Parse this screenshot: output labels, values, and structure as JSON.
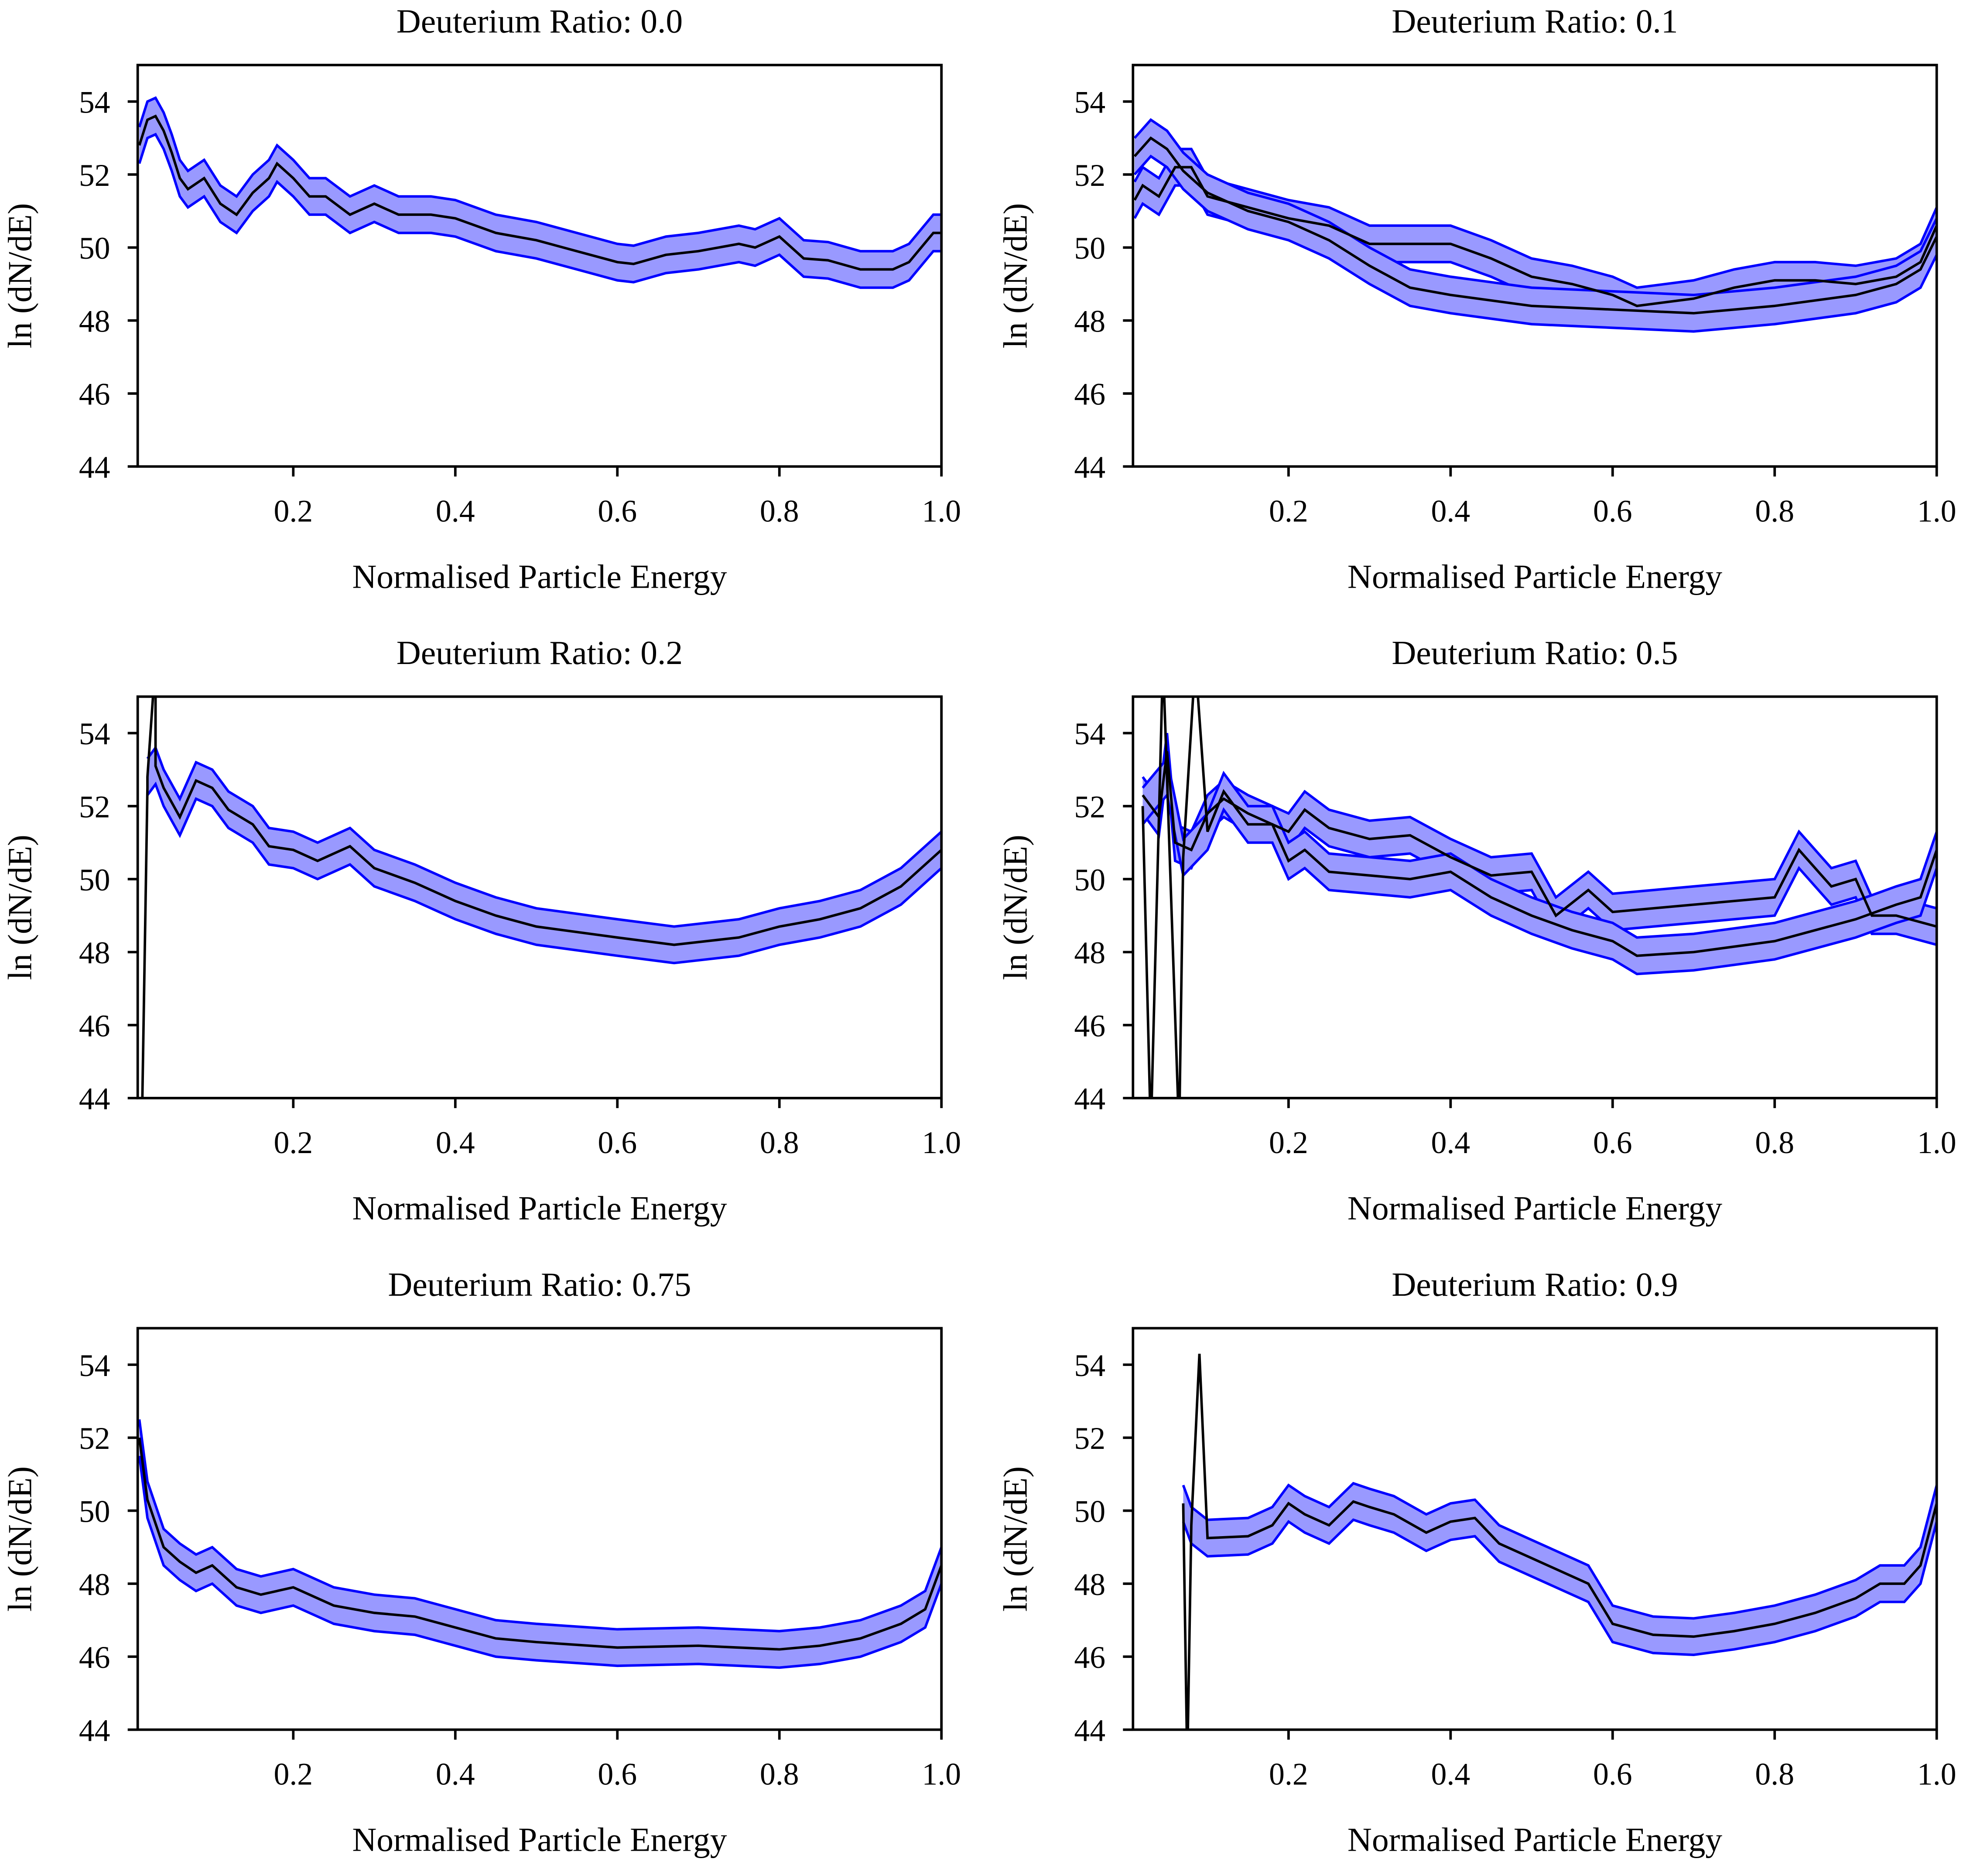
{
  "chart_data": [
    {
      "type": "line",
      "title": "Deuterium Ratio: 0.0",
      "xlabel": "Normalised Particle Energy",
      "ylabel": "ln (dN/dE)",
      "xlim": [
        0.008,
        1.0
      ],
      "ylim": [
        44,
        55
      ],
      "xticks": [
        "0.2",
        "0.4",
        "0.6",
        "0.8",
        "1.0"
      ],
      "yticks": [
        "44",
        "46",
        "48",
        "50",
        "52",
        "54"
      ],
      "line_color": "#000000",
      "band_color": "#0000ff",
      "band_fill": "#9999ff",
      "series": [
        {
          "spread": 0.5,
          "x": [
            0.01,
            0.02,
            0.03,
            0.04,
            0.05,
            0.06,
            0.07,
            0.09,
            0.11,
            0.13,
            0.15,
            0.17,
            0.18,
            0.2,
            0.22,
            0.24,
            0.27,
            0.3,
            0.33,
            0.37,
            0.4,
            0.45,
            0.5,
            0.55,
            0.6,
            0.62,
            0.66,
            0.7,
            0.75,
            0.77,
            0.8,
            0.83,
            0.86,
            0.9,
            0.94,
            0.96,
            0.99,
            1.0
          ],
          "y": [
            52.8,
            53.5,
            53.6,
            53.2,
            52.6,
            51.9,
            51.6,
            51.9,
            51.2,
            50.9,
            51.5,
            51.9,
            52.3,
            51.9,
            51.4,
            51.4,
            50.9,
            51.2,
            50.9,
            50.9,
            50.8,
            50.4,
            50.2,
            49.9,
            49.6,
            49.55,
            49.8,
            49.9,
            50.1,
            50.0,
            50.3,
            49.7,
            49.65,
            49.4,
            49.4,
            49.6,
            50.4,
            50.4
          ]
        }
      ]
    },
    {
      "type": "line",
      "title": "Deuterium Ratio: 0.1",
      "xlabel": "Normalised Particle Energy",
      "ylabel": "ln (dN/dE)",
      "xlim": [
        0.008,
        1.0
      ],
      "ylim": [
        44,
        55
      ],
      "xticks": [
        "0.2",
        "0.4",
        "0.6",
        "0.8",
        "1.0"
      ],
      "yticks": [
        "44",
        "46",
        "48",
        "50",
        "52",
        "54"
      ],
      "line_color": "#000000",
      "band_color": "#0000ff",
      "band_fill": "#9999ff",
      "series": [
        {
          "spread": 0.5,
          "x": [
            0.01,
            0.02,
            0.04,
            0.06,
            0.08,
            0.1,
            0.15,
            0.2,
            0.25,
            0.3,
            0.35,
            0.4,
            0.45,
            0.5,
            0.55,
            0.6,
            0.63,
            0.7,
            0.75,
            0.8,
            0.85,
            0.9,
            0.95,
            0.98,
            1.0
          ],
          "y": [
            51.3,
            51.7,
            51.4,
            52.2,
            52.2,
            51.4,
            51.1,
            50.8,
            50.6,
            50.1,
            50.1,
            50.1,
            49.7,
            49.2,
            49.0,
            48.7,
            48.4,
            48.6,
            48.9,
            49.1,
            49.1,
            49.0,
            49.2,
            49.6,
            50.6
          ]
        },
        {
          "spread": 0.5,
          "x": [
            0.01,
            0.03,
            0.05,
            0.07,
            0.1,
            0.15,
            0.2,
            0.25,
            0.3,
            0.35,
            0.4,
            0.5,
            0.6,
            0.7,
            0.8,
            0.9,
            0.95,
            0.98,
            1.0
          ],
          "y": [
            52.5,
            53.0,
            52.7,
            52.1,
            51.5,
            51.0,
            50.7,
            50.2,
            49.5,
            48.9,
            48.7,
            48.4,
            48.3,
            48.2,
            48.4,
            48.7,
            49.0,
            49.4,
            50.3
          ]
        }
      ]
    },
    {
      "type": "line",
      "title": "Deuterium Ratio: 0.2",
      "xlabel": "Normalised Particle Energy",
      "ylabel": "ln (dN/dE)",
      "xlim": [
        0.008,
        1.0
      ],
      "ylim": [
        44,
        55
      ],
      "xticks": [
        "0.2",
        "0.4",
        "0.6",
        "0.8",
        "1.0"
      ],
      "yticks": [
        "44",
        "46",
        "48",
        "50",
        "52",
        "54"
      ],
      "line_color": "#000000",
      "band_color": "#0000ff",
      "band_fill": "#9999ff",
      "series": [
        {
          "spread": 0.5,
          "spike": [
            [
              0.013,
              43
            ],
            [
              0.02,
              52.5
            ],
            [
              0.03,
              56
            ]
          ],
          "x": [
            0.02,
            0.03,
            0.04,
            0.06,
            0.08,
            0.1,
            0.12,
            0.15,
            0.17,
            0.2,
            0.23,
            0.27,
            0.3,
            0.35,
            0.4,
            0.45,
            0.5,
            0.6,
            0.67,
            0.75,
            0.8,
            0.85,
            0.9,
            0.95,
            1.0
          ],
          "y": [
            52.8,
            53.1,
            52.5,
            51.7,
            52.7,
            52.5,
            51.9,
            51.5,
            50.9,
            50.8,
            50.5,
            50.9,
            50.3,
            49.9,
            49.4,
            49.0,
            48.7,
            48.4,
            48.2,
            48.4,
            48.7,
            48.9,
            49.2,
            49.8,
            50.8
          ]
        }
      ]
    },
    {
      "type": "line",
      "title": "Deuterium Ratio: 0.5",
      "xlabel": "Normalised Particle Energy",
      "ylabel": "ln (dN/dE)",
      "xlim": [
        0.008,
        1.0
      ],
      "ylim": [
        44,
        55
      ],
      "xticks": [
        "0.2",
        "0.4",
        "0.6",
        "0.8",
        "1.0"
      ],
      "yticks": [
        "44",
        "46",
        "48",
        "50",
        "52",
        "54"
      ],
      "line_color": "#000000",
      "band_color": "#0000ff",
      "band_fill": "#9999ff",
      "series": [
        {
          "spread": 0.5,
          "x": [
            0.02,
            0.04,
            0.05,
            0.06,
            0.08,
            0.1,
            0.12,
            0.15,
            0.2,
            0.22,
            0.25,
            0.3,
            0.35,
            0.4,
            0.45,
            0.5,
            0.53,
            0.57,
            0.6,
            0.65,
            0.7,
            0.75,
            0.8,
            0.83,
            0.87,
            0.9,
            0.92,
            0.95,
            1.0
          ],
          "y": [
            52.3,
            51.7,
            53.5,
            51.0,
            50.8,
            51.8,
            52.2,
            51.8,
            51.3,
            51.9,
            51.4,
            51.1,
            51.2,
            50.6,
            50.1,
            50.2,
            49.0,
            49.7,
            49.1,
            49.2,
            49.3,
            49.4,
            49.5,
            50.8,
            49.8,
            50.0,
            49.0,
            49.0,
            48.7
          ]
        },
        {
          "spread": 0.5,
          "spike": [
            [
              0.03,
              43
            ],
            [
              0.045,
              56
            ],
            [
              0.065,
              43
            ],
            [
              0.085,
              56
            ]
          ],
          "x": [
            0.02,
            0.05,
            0.07,
            0.1,
            0.12,
            0.15,
            0.18,
            0.2,
            0.22,
            0.25,
            0.3,
            0.35,
            0.4,
            0.45,
            0.5,
            0.55,
            0.6,
            0.63,
            0.7,
            0.8,
            0.9,
            0.95,
            0.98,
            1.0
          ],
          "y": [
            52.0,
            52.8,
            50.6,
            51.3,
            52.4,
            51.5,
            51.5,
            50.5,
            50.8,
            50.2,
            50.1,
            50.0,
            50.2,
            49.5,
            49.0,
            48.6,
            48.3,
            47.9,
            48.0,
            48.3,
            48.9,
            49.3,
            49.5,
            50.8
          ]
        }
      ]
    },
    {
      "type": "line",
      "title": "Deuterium Ratio: 0.75",
      "xlabel": "Normalised Particle Energy",
      "ylabel": "ln (dN/dE)",
      "xlim": [
        0.008,
        1.0
      ],
      "ylim": [
        44,
        55
      ],
      "xticks": [
        "0.2",
        "0.4",
        "0.6",
        "0.8",
        "1.0"
      ],
      "yticks": [
        "44",
        "46",
        "48",
        "50",
        "52",
        "54"
      ],
      "line_color": "#000000",
      "band_color": "#0000ff",
      "band_fill": "#9999ff",
      "series": [
        {
          "spread": 0.5,
          "x": [
            0.01,
            0.02,
            0.04,
            0.06,
            0.08,
            0.1,
            0.13,
            0.16,
            0.2,
            0.25,
            0.3,
            0.35,
            0.4,
            0.45,
            0.5,
            0.6,
            0.7,
            0.8,
            0.85,
            0.9,
            0.95,
            0.98,
            1.0
          ],
          "y": [
            52.0,
            50.3,
            49.0,
            48.6,
            48.3,
            48.5,
            47.9,
            47.7,
            47.9,
            47.4,
            47.2,
            47.1,
            46.8,
            46.5,
            46.4,
            46.25,
            46.3,
            46.2,
            46.3,
            46.5,
            46.9,
            47.3,
            48.5
          ]
        }
      ]
    },
    {
      "type": "line",
      "title": "Deuterium Ratio: 0.9",
      "xlabel": "Normalised Particle Energy",
      "ylabel": "ln (dN/dE)",
      "xlim": [
        0.008,
        1.0
      ],
      "ylim": [
        44,
        55
      ],
      "xticks": [
        "0.2",
        "0.4",
        "0.6",
        "0.8",
        "1.0"
      ],
      "yticks": [
        "44",
        "46",
        "48",
        "50",
        "52",
        "54"
      ],
      "line_color": "#000000",
      "band_color": "#0000ff",
      "band_fill": "#9999ff",
      "series": [
        {
          "spread": 0.5,
          "spike": [
            [
              0.075,
              43
            ],
            [
              0.09,
              54.3
            ]
          ],
          "x": [
            0.07,
            0.08,
            0.1,
            0.15,
            0.18,
            0.2,
            0.22,
            0.25,
            0.28,
            0.3,
            0.33,
            0.37,
            0.4,
            0.43,
            0.46,
            0.5,
            0.55,
            0.57,
            0.6,
            0.65,
            0.7,
            0.75,
            0.8,
            0.85,
            0.9,
            0.93,
            0.96,
            0.98,
            1.0
          ],
          "y": [
            50.2,
            49.6,
            49.25,
            49.3,
            49.6,
            50.2,
            49.9,
            49.6,
            50.25,
            50.1,
            49.9,
            49.4,
            49.7,
            49.8,
            49.1,
            48.7,
            48.2,
            48.0,
            46.9,
            46.6,
            46.55,
            46.7,
            46.9,
            47.2,
            47.6,
            48.0,
            48.0,
            48.5,
            50.2
          ]
        }
      ]
    }
  ]
}
